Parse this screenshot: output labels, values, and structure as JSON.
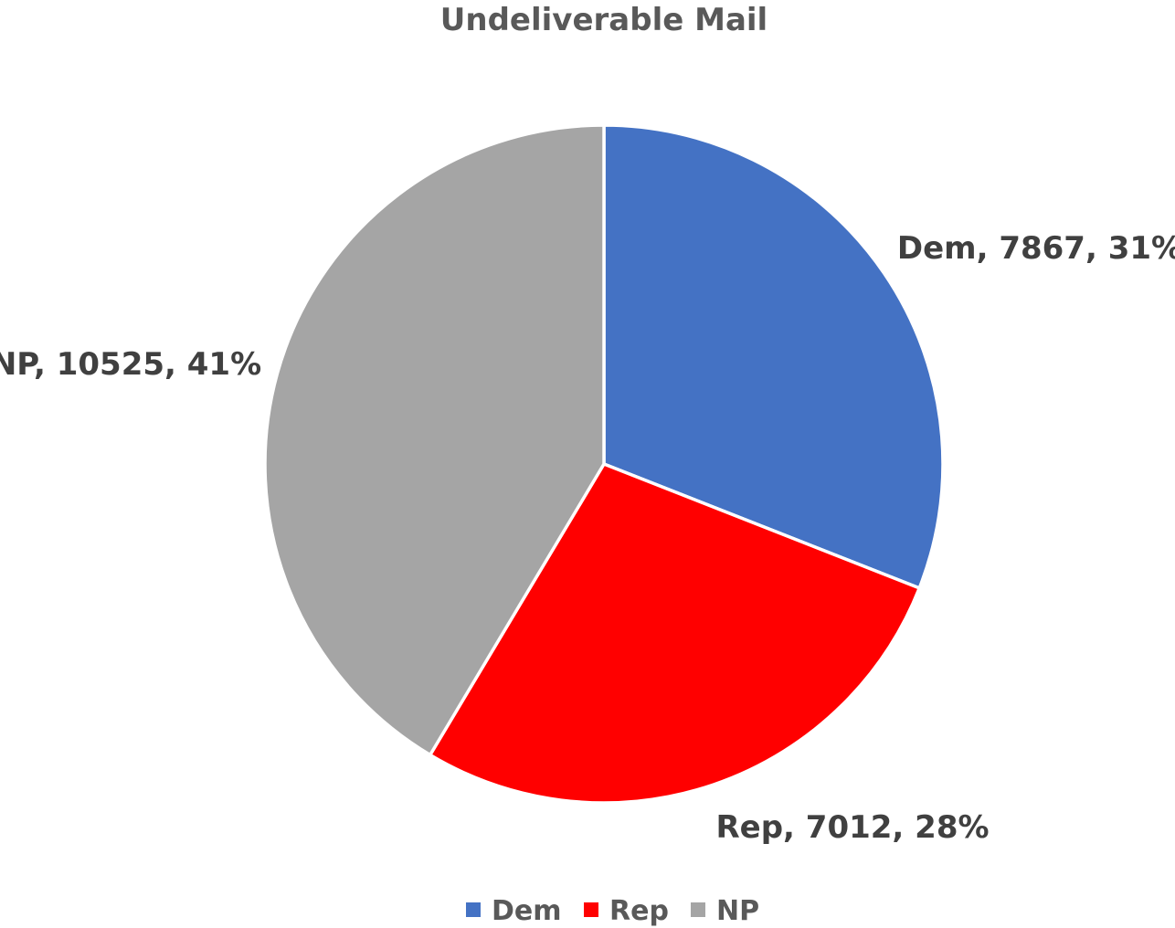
{
  "chart_data": {
    "type": "pie",
    "title": "Undeliverable Mail",
    "slices": [
      {
        "name": "Dem",
        "value": 7867,
        "percent": 31,
        "color": "#4472C4",
        "label": "Dem, 7867, 31%"
      },
      {
        "name": "Rep",
        "value": 7012,
        "percent": 28,
        "color": "#FF0000",
        "label": "Rep, 7012, 28%"
      },
      {
        "name": "NP",
        "value": 10525,
        "percent": 41,
        "color": "#A5A5A5",
        "label": "NP, 10525, 41%"
      }
    ],
    "legend": {
      "placement": "bottom",
      "entries": [
        "Dem",
        "Rep",
        "NP"
      ]
    },
    "start_angle": "12 o'clock, clockwise"
  }
}
